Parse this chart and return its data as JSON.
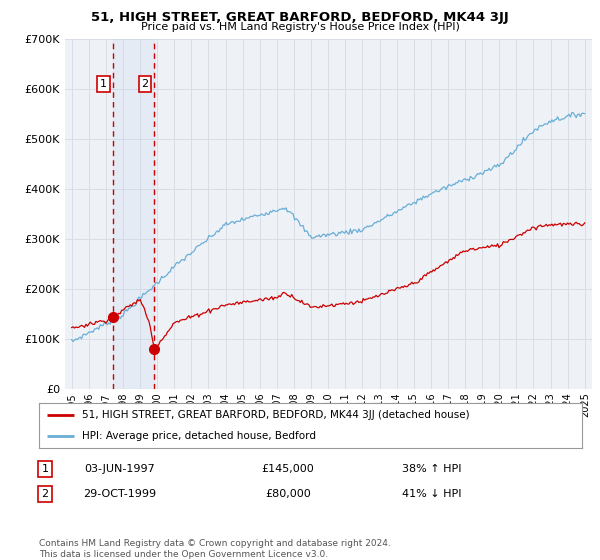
{
  "title": "51, HIGH STREET, GREAT BARFORD, BEDFORD, MK44 3JJ",
  "subtitle": "Price paid vs. HM Land Registry's House Price Index (HPI)",
  "ylim": [
    0,
    700000
  ],
  "yticks": [
    0,
    100000,
    200000,
    300000,
    400000,
    500000,
    600000,
    700000
  ],
  "ytick_labels": [
    "£0",
    "£100K",
    "£200K",
    "£300K",
    "£400K",
    "£500K",
    "£600K",
    "£700K"
  ],
  "background_color": "#ffffff",
  "plot_bg_color": "#eef2f7",
  "grid_color": "#d8dde6",
  "hpi_color": "#6aaed6",
  "price_color": "#cc0000",
  "purchase1_date": 1997.42,
  "purchase1_price": 145000,
  "purchase1_label": "1",
  "purchase2_date": 1999.83,
  "purchase2_price": 80000,
  "purchase2_label": "2",
  "legend_label1": "51, HIGH STREET, GREAT BARFORD, BEDFORD, MK44 3JJ (detached house)",
  "legend_label2": "HPI: Average price, detached house, Bedford",
  "table_row1": [
    "1",
    "03-JUN-1997",
    "£145,000",
    "38% ↑ HPI"
  ],
  "table_row2": [
    "2",
    "29-OCT-1999",
    "£80,000",
    "41% ↓ HPI"
  ],
  "footnote": "Contains HM Land Registry data © Crown copyright and database right 2024.\nThis data is licensed under the Open Government Licence v3.0.",
  "xmin": 1994.6,
  "xmax": 2025.4
}
